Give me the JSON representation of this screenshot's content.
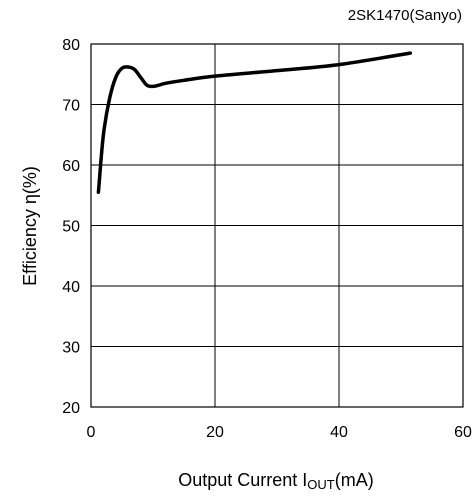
{
  "chart_data": {
    "type": "line",
    "annotation": "2SK1470(Sanyo)",
    "ylabel": "Efficiency η(%)",
    "xlabel": {
      "main": "Output Current I",
      "subscript": "OUT",
      "unit": "(mA)"
    },
    "xlim": [
      0,
      60
    ],
    "ylim": [
      20,
      80
    ],
    "x_ticks": [
      0,
      20,
      40,
      60
    ],
    "y_ticks": [
      20,
      30,
      40,
      50,
      60,
      70,
      80
    ],
    "grid": true,
    "series": [
      {
        "x": [
          1.2,
          2,
          3,
          4,
          5,
          6,
          7,
          8,
          9,
          10,
          11,
          12,
          15,
          20,
          30,
          40,
          51.5
        ],
        "y": [
          55.5,
          65,
          71,
          74.5,
          76,
          76.2,
          75.8,
          74.5,
          73.2,
          73,
          73.2,
          73.5,
          74,
          74.7,
          75.6,
          76.6,
          78.5
        ]
      }
    ]
  }
}
